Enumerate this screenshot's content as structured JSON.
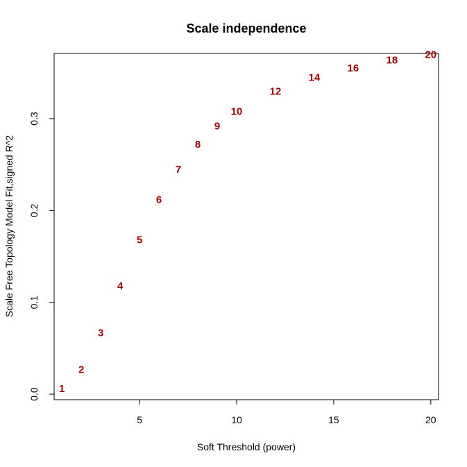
{
  "chart_data": {
    "type": "scatter",
    "title": "Scale independence",
    "xlabel": "Soft Threshold (power)",
    "ylabel": "Scale Free Topology Model Fit,signed R^2",
    "xlim": [
      0.6,
      20.4
    ],
    "ylim": [
      -0.006,
      0.371
    ],
    "x_ticks": [
      5,
      10,
      15,
      20
    ],
    "x_tick_labels": [
      "5",
      "10",
      "15",
      "20"
    ],
    "y_ticks": [
      0.0,
      0.1,
      0.2,
      0.3
    ],
    "y_tick_labels": [
      "0.0",
      "0.1",
      "0.2",
      "0.3"
    ],
    "point_color": "#A30000",
    "points": [
      {
        "x": 1,
        "y": 0.006,
        "label": "1"
      },
      {
        "x": 2,
        "y": 0.027,
        "label": "2"
      },
      {
        "x": 3,
        "y": 0.067,
        "label": "3"
      },
      {
        "x": 4,
        "y": 0.118,
        "label": "4"
      },
      {
        "x": 5,
        "y": 0.168,
        "label": "5"
      },
      {
        "x": 6,
        "y": 0.212,
        "label": "6"
      },
      {
        "x": 7,
        "y": 0.245,
        "label": "7"
      },
      {
        "x": 8,
        "y": 0.272,
        "label": "8"
      },
      {
        "x": 9,
        "y": 0.292,
        "label": "9"
      },
      {
        "x": 10,
        "y": 0.308,
        "label": "10"
      },
      {
        "x": 12,
        "y": 0.33,
        "label": "12"
      },
      {
        "x": 14,
        "y": 0.345,
        "label": "14"
      },
      {
        "x": 16,
        "y": 0.355,
        "label": "16"
      },
      {
        "x": 18,
        "y": 0.364,
        "label": "18"
      },
      {
        "x": 20,
        "y": 0.37,
        "label": "20"
      }
    ]
  }
}
